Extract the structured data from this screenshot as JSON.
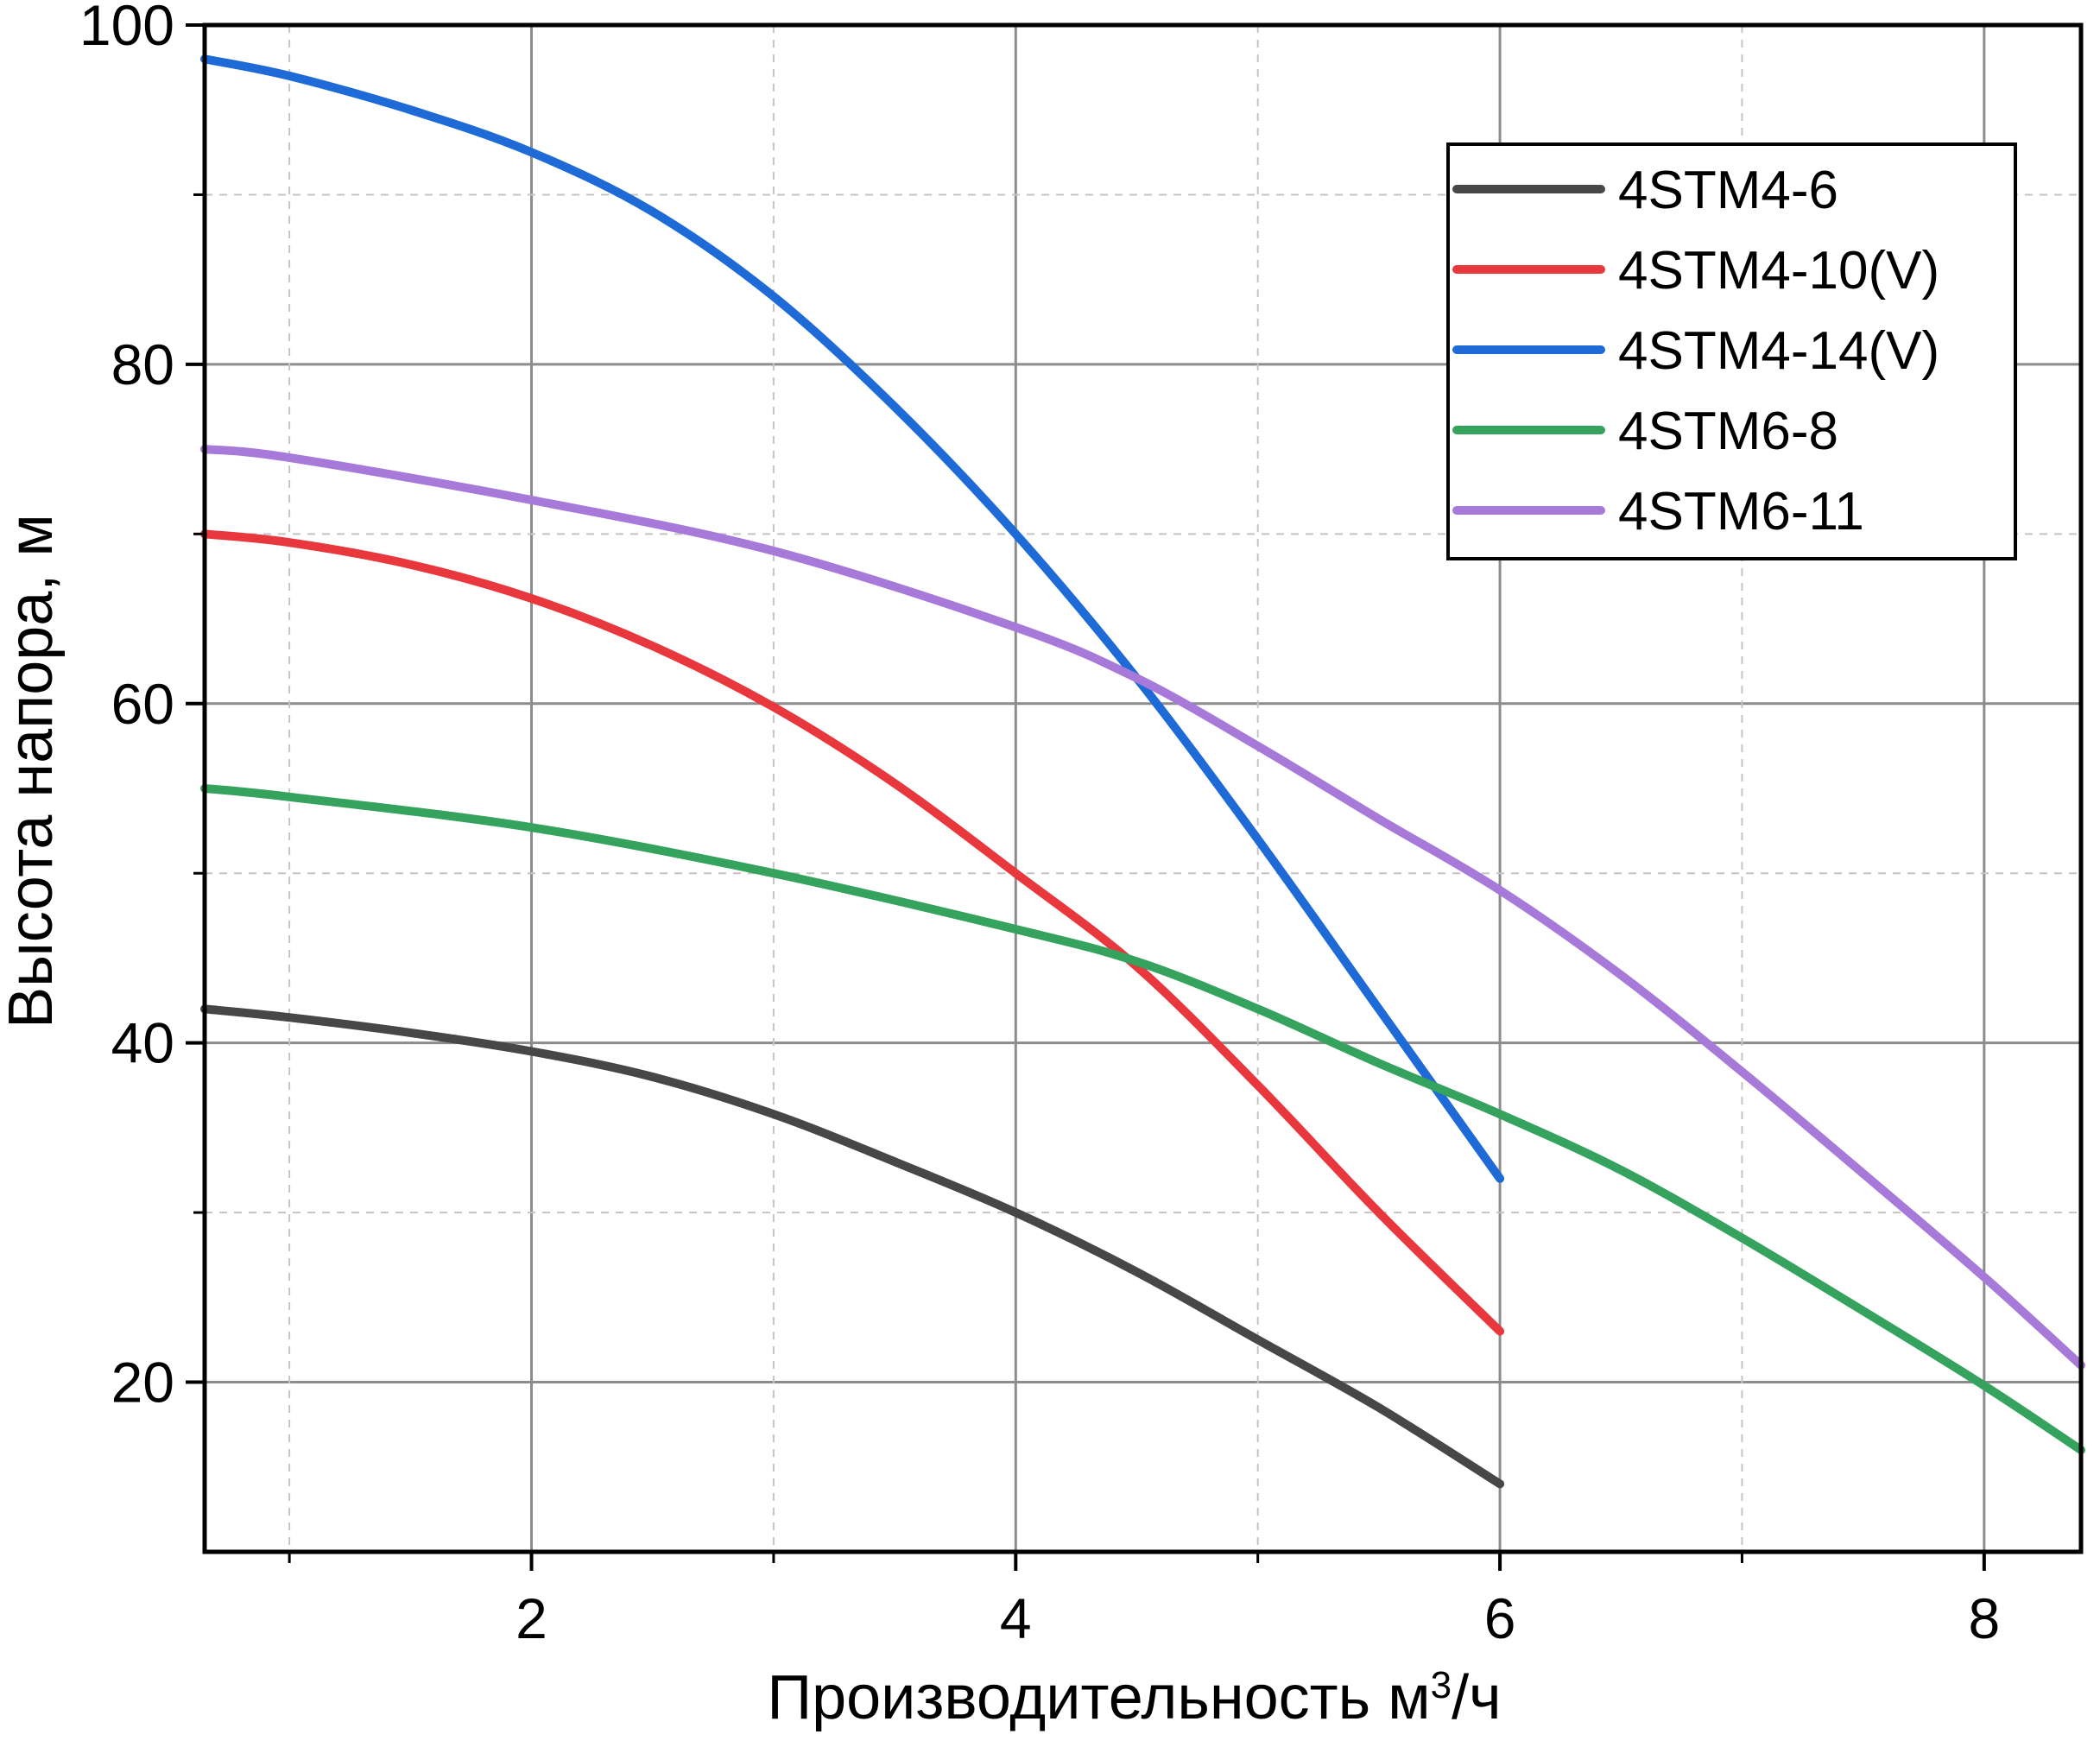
{
  "chart_data": {
    "type": "line",
    "title": "",
    "xlabel": "Производительность м",
    "xlabel_superscript": "3",
    "xlabel_suffix": "/ч",
    "ylabel": "Высота напора, м",
    "xlim": [
      0.65,
      8.4
    ],
    "ylim": [
      10,
      100
    ],
    "xticks": [
      2,
      4,
      6,
      8
    ],
    "yticks": [
      20,
      40,
      60,
      80,
      100
    ],
    "x_minor_ticks": [
      1,
      3,
      5,
      7
    ],
    "y_minor_ticks": [
      30,
      50,
      70,
      90
    ],
    "grid": true,
    "legend_position": "top-right",
    "series": [
      {
        "name": "4STM4-6",
        "color": "#474747",
        "x": [
          0.65,
          1.0,
          1.5,
          2.0,
          2.5,
          3.0,
          3.5,
          4.0,
          4.5,
          5.0,
          5.5,
          6.0
        ],
        "y": [
          42,
          41.5,
          40.6,
          39.5,
          38.0,
          35.8,
          33.0,
          30.0,
          26.5,
          22.5,
          18.5,
          14
        ]
      },
      {
        "name": "4STM4-10(V)",
        "color": "#e8383d",
        "x": [
          0.65,
          1.0,
          1.5,
          2.0,
          2.5,
          3.0,
          3.5,
          4.0,
          4.5,
          5.0,
          5.5,
          6.0
        ],
        "y": [
          70,
          69.5,
          68.2,
          66.2,
          63.4,
          59.8,
          55.3,
          50.0,
          44.5,
          37.5,
          30.0,
          23
        ]
      },
      {
        "name": "4STM4-14(V)",
        "color": "#1e6ad6",
        "x": [
          0.65,
          1.0,
          1.5,
          2.0,
          2.5,
          3.0,
          3.5,
          4.0,
          4.5,
          5.0,
          5.5,
          6.0
        ],
        "y": [
          98,
          97,
          95,
          92.5,
          89,
          84,
          77.5,
          70,
          61.5,
          52,
          42,
          32
        ]
      },
      {
        "name": "4STM6-8",
        "color": "#35a25e",
        "x": [
          0.65,
          1.0,
          2.0,
          3.0,
          4.0,
          4.5,
          5.0,
          5.5,
          6.0,
          6.5,
          7.0,
          7.5,
          8.0,
          8.4
        ],
        "y": [
          55,
          54.5,
          52.7,
          50,
          46.7,
          44.8,
          42.0,
          38.8,
          35.8,
          32.5,
          28.5,
          24.2,
          19.8,
          16
        ]
      },
      {
        "name": "4STM6-11",
        "color": "#a77ad9",
        "x": [
          0.65,
          1.0,
          2.0,
          3.0,
          4.0,
          4.5,
          5.0,
          5.5,
          6.0,
          6.5,
          7.0,
          7.5,
          8.0,
          8.4
        ],
        "y": [
          75,
          74.5,
          72,
          69,
          64.5,
          61.5,
          57.5,
          53.2,
          49,
          44,
          38.3,
          32.3,
          26.2,
          21
        ]
      }
    ]
  }
}
